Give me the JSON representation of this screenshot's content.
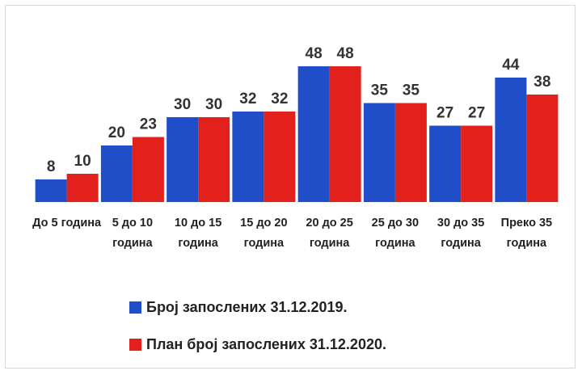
{
  "chart_data": {
    "type": "bar",
    "categories": [
      "До 5 година",
      "5 до 10 година",
      "10 до 15 година",
      "15 до 20 година",
      "20 до 25 година",
      "25 до 30 година",
      "30 до 35 година",
      "Преко 35 година"
    ],
    "series": [
      {
        "name": "Број запослених 31.12.2019.",
        "color": "#1f4ec8",
        "values": [
          8,
          20,
          30,
          32,
          48,
          35,
          27,
          44
        ]
      },
      {
        "name": "План број запослених 31.12.2020.",
        "color": "#e3211c",
        "values": [
          10,
          23,
          30,
          32,
          48,
          35,
          27,
          38
        ]
      }
    ],
    "ylim": [
      0,
      54
    ]
  }
}
